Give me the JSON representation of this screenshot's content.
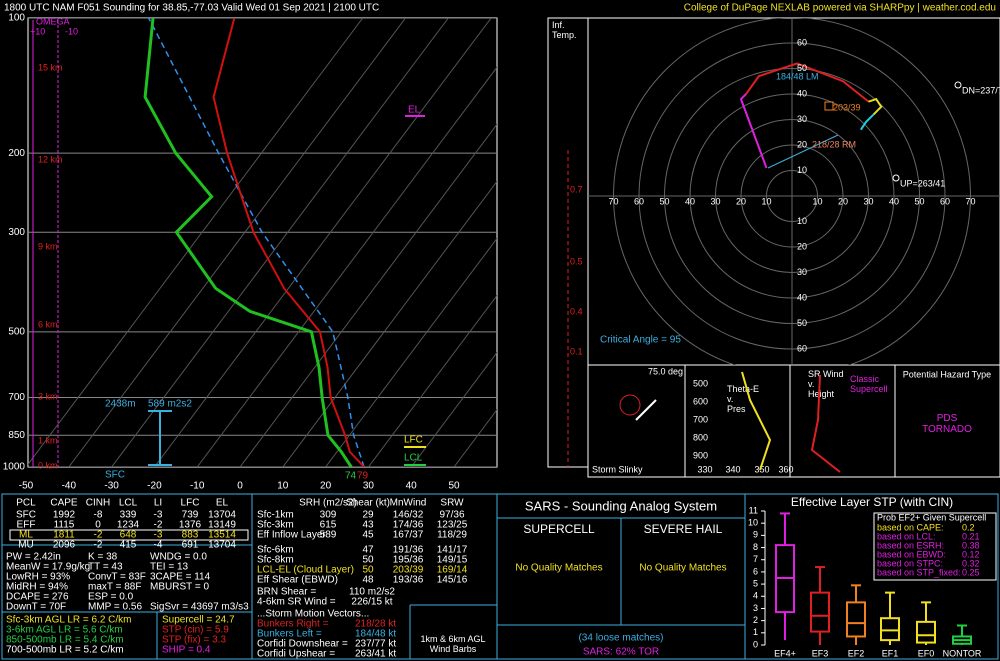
{
  "header": {
    "title": "1800 UTC NAM F051 Sounding for 38.85,-77.03  Valid  Wed 01 Sep 2021 | 2100 UTC",
    "credit": "College of DuPage NEXLAB powered via SHARPpy | weather.cod.edu"
  },
  "skewt": {
    "pressure_ticks": [
      100,
      200,
      300,
      500,
      700,
      850,
      1000
    ],
    "temp_ticks": [
      -50,
      -40,
      -30,
      -20,
      -10,
      0,
      10,
      20,
      30,
      40,
      50
    ],
    "height_labels": [
      "15 km",
      "12 km",
      "9 km",
      "6 km",
      "3 km",
      "1 km",
      "0 km"
    ],
    "omega": {
      "title": "OMEGA",
      "left": "+10",
      "right": "-10"
    },
    "temperature": {
      "pressure": [
        1000,
        925,
        850,
        700,
        600,
        500,
        400,
        300,
        250,
        200,
        150,
        100
      ],
      "values": [
        29,
        23,
        19,
        9,
        3,
        -5,
        -21,
        -38,
        -47,
        -58,
        -71,
        -80
      ],
      "color": "#d01010"
    },
    "dewpoint": {
      "pressure": [
        1000,
        925,
        850,
        700,
        600,
        500,
        450,
        400,
        300,
        250,
        200,
        150,
        100
      ],
      "values": [
        26,
        21,
        15,
        7,
        1,
        -7,
        -25,
        -37,
        -56,
        -54,
        -70,
        -87,
        -99
      ],
      "color": "#20c020"
    },
    "parcel": {
      "pressure": [
        1000,
        850,
        700,
        500,
        300,
        200,
        100
      ],
      "values": [
        29,
        21,
        13,
        -2,
        -36,
        -60,
        -100
      ],
      "color": "#3090f0"
    },
    "levels": {
      "el": "EL",
      "lfc": "LFC",
      "lcl": "LCL",
      "sfc": "SFC"
    },
    "inflow": {
      "depth": "2438m",
      "srh": "589 m2s2"
    },
    "surface": {
      "dew": "74",
      "temp": "79"
    },
    "inf_temp": {
      "title": "Inf.\nTemp.",
      "values": [
        "0.7",
        "0.5",
        "0.4",
        "0.1"
      ]
    }
  },
  "hodograph": {
    "rings": [
      10,
      20,
      30,
      40,
      50,
      60,
      70
    ],
    "segments": [
      {
        "color": "#e020e0",
        "u": [
          -10,
          -20,
          -18
        ],
        "v": [
          11,
          38,
          40
        ]
      },
      {
        "color": "#e02020",
        "u": [
          -18,
          -13,
          2,
          20,
          30
        ],
        "v": [
          40,
          47,
          52,
          45,
          37
        ]
      },
      {
        "color": "#e0e020",
        "u": [
          30,
          33,
          35,
          32
        ],
        "v": [
          37,
          38,
          35,
          32
        ]
      },
      {
        "color": "#20d0e0",
        "u": [
          32,
          29,
          27
        ],
        "v": [
          32,
          29,
          26
        ]
      }
    ],
    "labels": {
      "lm": "184/48 LM",
      "mean": "203/39",
      "rm": "218/28 RM",
      "dn": "DN=237/77",
      "up": "UP=263/41"
    },
    "critical_angle": "Critical Angle = 95"
  },
  "panels": {
    "slinky": {
      "angle": "75.0 deg",
      "title": "Storm Slinky"
    },
    "thetae": {
      "title": "Theta-E\nv.\nPres",
      "pressures": [
        "500",
        "600",
        "700",
        "800",
        "900"
      ],
      "temps": [
        "330",
        "340",
        "350",
        "360"
      ]
    },
    "srwind": {
      "title": "SR Wind\nv.\nHeight",
      "note": "Classic\nSupercell"
    },
    "hazard": {
      "title": "Potential Hazard Type",
      "type": "PDS\nTORNADO"
    }
  },
  "thermo": {
    "header": [
      "PCL",
      "CAPE",
      "CINH",
      "LCL",
      "LI",
      "LFC",
      "EL"
    ],
    "rows": [
      [
        "SFC",
        "1992",
        "-8",
        "339",
        "-3",
        "739",
        "13704"
      ],
      [
        "EFF",
        "1115",
        "0",
        "1234",
        "-2",
        "1376",
        "13149"
      ],
      [
        "ML",
        "1811",
        "-2",
        "648",
        "-3",
        "883",
        "13514"
      ],
      [
        "MU",
        "2096",
        "-2",
        "415",
        "-4",
        "691",
        "13704"
      ]
    ],
    "misc": [
      [
        "PW = 2.42in",
        "K = 38",
        "WNDG = 0.0"
      ],
      [
        "MeanW = 17.9g/kg",
        "TT = 43",
        "TEI = 13"
      ],
      [
        "LowRH = 93%",
        "ConvT = 83F",
        "3CAPE = 114"
      ],
      [
        "MidRH = 94%",
        "maxT = 88F",
        "MBURST = 0"
      ],
      [
        "DCAPE = 276",
        "ESP = 0.0"
      ],
      [
        "DownT = 70F",
        "MMP = 0.56",
        "SigSvr = 43697 m3/s3"
      ]
    ],
    "lapse": [
      "Sfc-3km AGL LR = 6.2 C/km",
      "3-6km AGL LR = 5.6 C/km",
      "850-500mb LR = 5.4 C/km",
      "700-500mb LR = 5.2 C/km"
    ],
    "composites": [
      "Supercell = 24.7",
      "STP (cin) = 5.9",
      "STP (fix) = 3.3",
      "SHIP = 0.4"
    ]
  },
  "kinematics": {
    "header": [
      "SRH (m2/s2)",
      "Shear (kt)",
      "MnWind",
      "SRW"
    ],
    "rows": [
      {
        "label": "Sfc-1km",
        "srh": "309",
        "shear": "29",
        "mnwind": "146/32",
        "srw": "97/36"
      },
      {
        "label": "Sfc-3km",
        "srh": "615",
        "shear": "43",
        "mnwind": "174/36",
        "srw": "123/25"
      },
      {
        "label": "Eff Inflow Layer",
        "srh": "589",
        "shear": "45",
        "mnwind": "167/37",
        "srw": "118/29"
      },
      {
        "label": "Sfc-6km",
        "shear": "47",
        "mnwind": "191/36",
        "srw": "141/17"
      },
      {
        "label": "Sfc-8km",
        "shear": "50",
        "mnwind": "195/36",
        "srw": "149/15"
      },
      {
        "label": "LCL-EL (Cloud Layer)",
        "shear": "50",
        "mnwind": "203/39",
        "srw": "169/14"
      },
      {
        "label": "Eff Shear (EBWD)",
        "shear": "48",
        "mnwind": "193/36",
        "srw": "145/16"
      }
    ],
    "extra": [
      {
        "label": "BRN Shear =",
        "value": "110 m2/s2"
      },
      {
        "label": "4-6km SR Wind =",
        "value": "226/15 kt"
      }
    ],
    "motion_title": "...Storm Motion Vectors...",
    "motion": [
      {
        "label": "Bunkers Right =",
        "value": "218/28 kt"
      },
      {
        "label": "Bunkers Left =",
        "value": "184/48 kt"
      },
      {
        "label": "Corfidi Downshear =",
        "value": "237/77 kt"
      },
      {
        "label": "Corfidi Upshear =",
        "value": "263/41 kt"
      }
    ],
    "barbs": "1km & 6km AGL\nWind Barbs"
  },
  "sars": {
    "title": "SARS - Sounding Analog System",
    "supercell": "SUPERCELL",
    "hail": "SEVERE HAIL",
    "supercell_match": "No Quality Matches",
    "hail_match": "No Quality Matches",
    "loose": "(34 loose matches)",
    "tor": "SARS: 62% TOR"
  },
  "stp": {
    "title": "Effective Layer STP (with CIN)",
    "ylim": [
      0,
      11
    ],
    "yticks": [
      0,
      1,
      2,
      3,
      4,
      5,
      6,
      7,
      8,
      9,
      10,
      11
    ],
    "categories": [
      "EF4+",
      "EF3",
      "EF2",
      "EF1",
      "EF0",
      "NONTOR"
    ],
    "colors": [
      "#e020e0",
      "#e02020",
      "#f08020",
      "#f0e020",
      "#f0e020",
      "#20d040"
    ],
    "whisker_low": [
      0.4,
      0,
      0,
      0,
      0,
      0
    ],
    "q1": [
      2.7,
      1.1,
      0.7,
      0.4,
      0.2,
      0.1
    ],
    "median": [
      5.5,
      2.4,
      1.8,
      1.2,
      0.8,
      0.4
    ],
    "q3": [
      8.2,
      4.3,
      3.5,
      2.2,
      1.9,
      0.7
    ],
    "whisker_high": [
      10.8,
      6.4,
      4.9,
      4.3,
      3.5,
      1.6
    ],
    "legend_title": "Prob EF2+ Given Supercell",
    "legend": [
      {
        "label": "based on CAPE:",
        "value": "0.2"
      },
      {
        "label": "based on LCL:",
        "value": "0.21"
      },
      {
        "label": "based on ESRH:",
        "value": "0.38"
      },
      {
        "label": "based on EBWD:",
        "value": "0.12"
      },
      {
        "label": "based on STPC:",
        "value": "0.32"
      },
      {
        "label": "based on STP_fixed:",
        "value": "0.25"
      }
    ]
  }
}
